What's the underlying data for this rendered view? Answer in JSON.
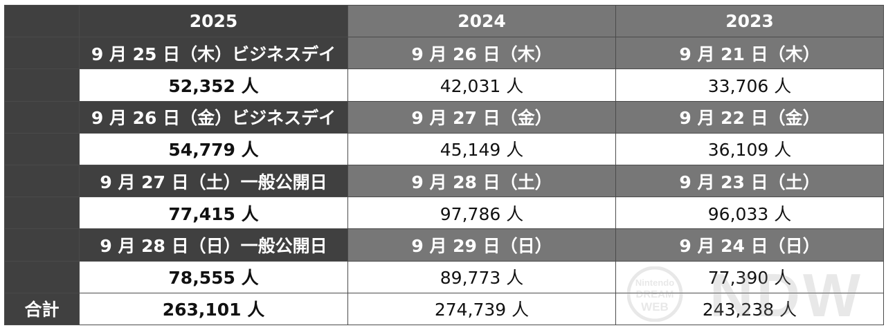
{
  "table": {
    "headers": [
      "",
      "2025",
      "2024",
      "2023"
    ],
    "rows": [
      {
        "type": "date",
        "label": "",
        "cells": [
          "9 月 25 日（木）ビジネスデイ",
          "9 月 26 日（木）",
          "9 月 21 日（木）"
        ]
      },
      {
        "type": "value",
        "label": "",
        "cells": [
          "52,352 人",
          "42,031 人",
          "33,706 人"
        ]
      },
      {
        "type": "date",
        "label": "",
        "cells": [
          "9 月 26 日（金）ビジネスデイ",
          "9 月 27 日（金）",
          "9 月 22 日（金）"
        ]
      },
      {
        "type": "value",
        "label": "",
        "cells": [
          "54,779 人",
          "45,149 人",
          "36,109 人"
        ]
      },
      {
        "type": "date",
        "label": "",
        "cells": [
          "9 月 27 日（土）一般公開日",
          "9 月 28 日（土）",
          "9 月 23 日（土）"
        ]
      },
      {
        "type": "value",
        "label": "",
        "cells": [
          "77,415 人",
          "97,786 人",
          "96,033 人"
        ]
      },
      {
        "type": "date",
        "label": "",
        "cells": [
          "9 月 28 日（日）一般公開日",
          "9 月 29 日（日）",
          "9 月 24 日（日）"
        ]
      },
      {
        "type": "value",
        "label": "",
        "cells": [
          "78,555 人",
          "89,773 人",
          "77,390 人"
        ]
      },
      {
        "type": "value",
        "label": "合計",
        "cells": [
          "263,101 人",
          "274,739 人",
          "243,238 人"
        ]
      }
    ]
  },
  "watermark": {
    "icon": "ndw-logo-icon",
    "lines": [
      "Nintendo",
      "DREAM",
      "WEB"
    ],
    "letters": "NDW",
    "color": "#9a9a9a"
  }
}
